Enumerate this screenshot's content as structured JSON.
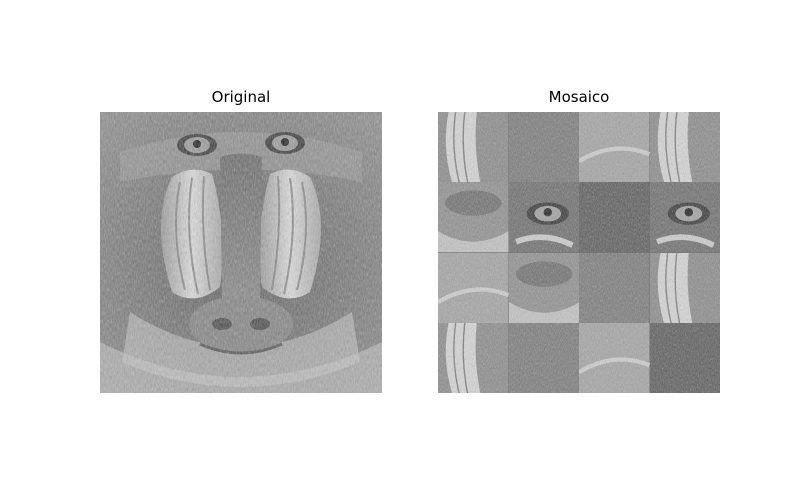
{
  "figure": {
    "left_panel": {
      "title": "Original"
    },
    "right_panel": {
      "title": "Mosaico"
    }
  },
  "mosaic_tiles": [
    "nose-stripes",
    "fur",
    "fur-light",
    "nose-stripes",
    "mouth-fur",
    "eye",
    "fur-dark",
    "eye",
    "fur-light",
    "mouth-fur",
    "fur",
    "nose-stripes",
    "nose-stripes",
    "fur",
    "fur-light",
    "fur-dark"
  ]
}
